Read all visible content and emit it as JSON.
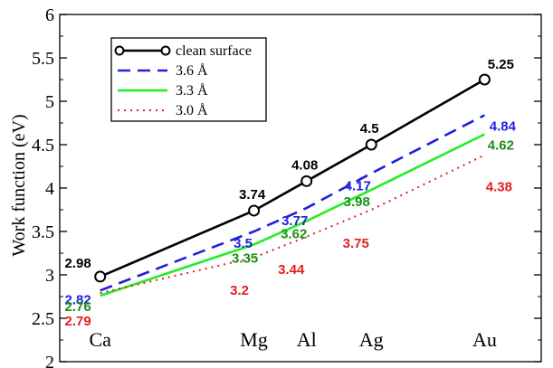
{
  "chart_data": {
    "type": "line",
    "ylabel": "Work function (eV)",
    "xlabel": "",
    "ylim": [
      2,
      6
    ],
    "yticks": [
      "2",
      "2.5",
      "3",
      "3.5",
      "4",
      "4.5",
      "5",
      "5.5",
      "6"
    ],
    "categories": [
      "Ca",
      "Mg",
      "Al",
      "Ag",
      "Au"
    ],
    "x": [
      1,
      2.9,
      3.55,
      4.35,
      5.75
    ],
    "legend_position": "top-left",
    "series": [
      {
        "name": "clean surface",
        "color": "#000000",
        "style": "solid-markers",
        "values": [
          2.98,
          3.74,
          4.08,
          4.5,
          5.25
        ],
        "labels": [
          "2.98",
          "3.74",
          "4.08",
          "4.5",
          "5.25"
        ]
      },
      {
        "name": "3.6 Å",
        "color": "#1f1fdf",
        "style": "dashed",
        "values": [
          2.82,
          3.5,
          3.77,
          4.17,
          4.84
        ],
        "labels": [
          "2.82",
          "3.5",
          "3.77",
          "4.17",
          "4.84"
        ]
      },
      {
        "name": "3.3 Å",
        "color": "#22ee22",
        "label_color": "#1a8f1a",
        "style": "solid",
        "values": [
          2.76,
          3.35,
          3.62,
          3.98,
          4.62
        ],
        "labels": [
          "2.76",
          "3.35",
          "3.62",
          "3.98",
          "4.62"
        ]
      },
      {
        "name": "3.0 Å",
        "color": "#e02020",
        "style": "dotted",
        "values": [
          2.79,
          3.2,
          3.44,
          3.75,
          4.38
        ],
        "labels": [
          "2.79",
          "3.2",
          "3.44",
          "3.75",
          "4.38"
        ]
      }
    ]
  }
}
